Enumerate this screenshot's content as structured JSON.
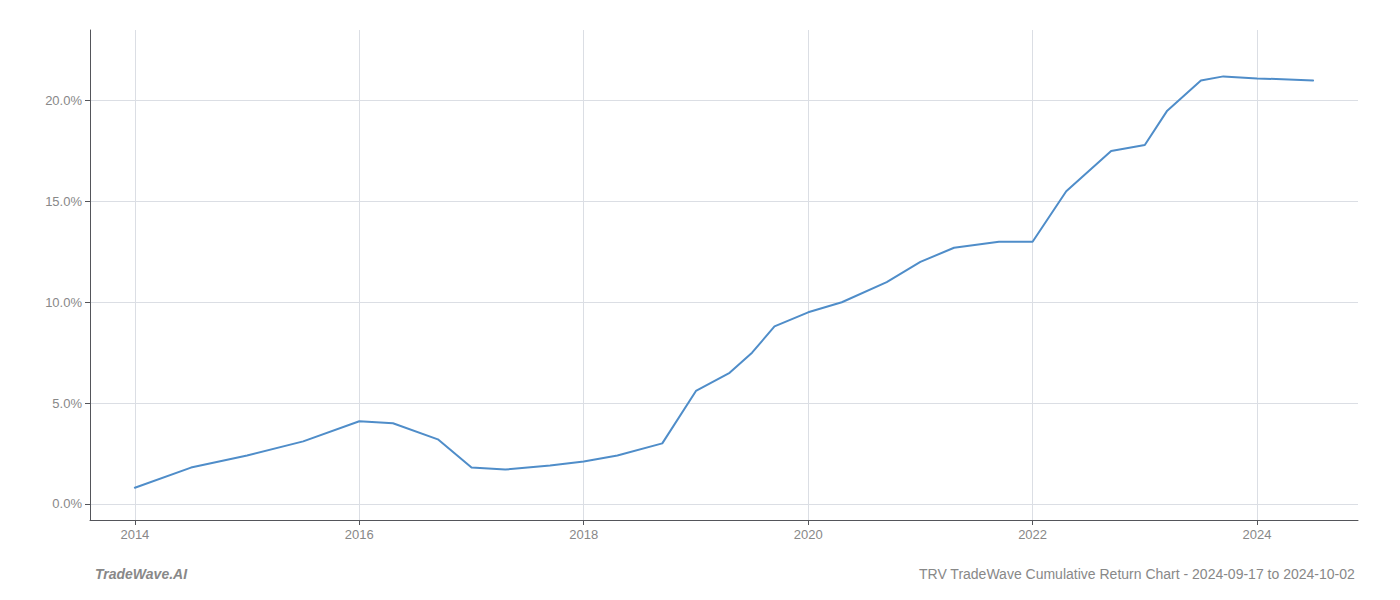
{
  "chart_data": {
    "type": "line",
    "title": "TRV TradeWave Cumulative Return Chart - 2024-09-17 to 2024-10-02",
    "annotations": [
      "TradeWave.AI"
    ],
    "x": [
      2014.0,
      2014.5,
      2015.0,
      2015.5,
      2016.0,
      2016.3,
      2016.7,
      2017.0,
      2017.3,
      2017.7,
      2018.0,
      2018.3,
      2018.7,
      2019.0,
      2019.3,
      2019.5,
      2019.7,
      2020.0,
      2020.3,
      2020.7,
      2021.0,
      2021.3,
      2021.7,
      2022.0,
      2022.3,
      2022.7,
      2023.0,
      2023.2,
      2023.5,
      2023.7,
      2024.0,
      2024.5
    ],
    "values": [
      0.008,
      0.018,
      0.024,
      0.031,
      0.041,
      0.04,
      0.032,
      0.018,
      0.017,
      0.019,
      0.021,
      0.024,
      0.03,
      0.056,
      0.065,
      0.075,
      0.088,
      0.095,
      0.1,
      0.11,
      0.12,
      0.127,
      0.13,
      0.13,
      0.155,
      0.175,
      0.178,
      0.195,
      0.21,
      0.212,
      0.211,
      0.21
    ],
    "color": "#4f8dc9",
    "xlim": [
      2013.6,
      2024.9
    ],
    "xticks": [
      2014,
      2016,
      2018,
      2020,
      2022,
      2024
    ],
    "ylim": [
      -0.008,
      0.235
    ],
    "yticks": [
      {
        "value": 0.0,
        "label": "0.0%"
      },
      {
        "value": 0.05,
        "label": "5.0%"
      },
      {
        "value": 0.1,
        "label": "10.0%"
      },
      {
        "value": 0.15,
        "label": "15.0%"
      },
      {
        "value": 0.2,
        "label": "20.0%"
      }
    ],
    "grid": true
  }
}
